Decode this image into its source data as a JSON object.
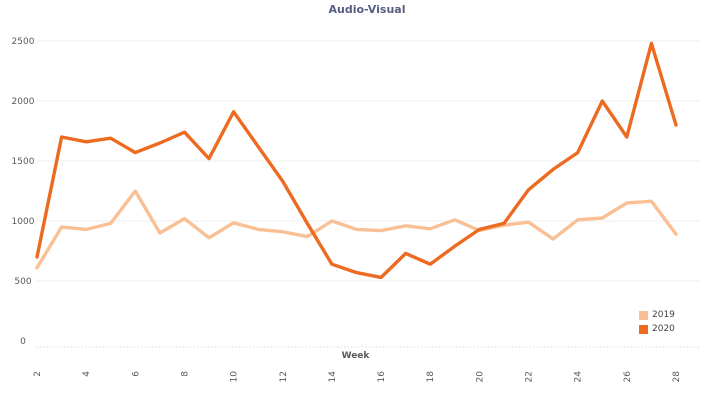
{
  "title": "Audio-Visual",
  "axis": {
    "x_title": "Week"
  },
  "legend": {
    "items": [
      {
        "label": "2019",
        "color": "#F9C096"
      },
      {
        "label": "2020",
        "color": "#ED6B21"
      }
    ]
  },
  "colors": {
    "title": "#565E82",
    "axis_text": "#595959",
    "gridline": "#EFEFEF",
    "axis_line": "#D9D9D9",
    "legend_text": "#404040",
    "background": "#FFFFFF"
  },
  "chart_data": {
    "type": "line",
    "title": "Audio-Visual",
    "xlabel": "Week",
    "ylabel": "",
    "x": [
      2,
      3,
      4,
      5,
      6,
      7,
      8,
      9,
      10,
      11,
      12,
      13,
      14,
      15,
      16,
      17,
      18,
      19,
      20,
      21,
      22,
      23,
      24,
      25,
      26,
      27,
      28
    ],
    "x_ticks_shown": [
      2,
      4,
      6,
      8,
      10,
      12,
      14,
      16,
      18,
      20,
      22,
      24,
      26,
      28
    ],
    "ylim": [
      0,
      2500
    ],
    "y_ticks": [
      0,
      500,
      1000,
      1500,
      2000,
      2500
    ],
    "grid": "horizontal",
    "legend_position": "bottom-right",
    "series": [
      {
        "name": "2019",
        "color": "#F9C096",
        "values": [
          610,
          950,
          930,
          980,
          1250,
          900,
          1020,
          860,
          985,
          930,
          910,
          870,
          1000,
          930,
          920,
          960,
          935,
          1010,
          920,
          965,
          990,
          850,
          1010,
          1025,
          1150,
          1165,
          890
        ]
      },
      {
        "name": "2020",
        "color": "#ED6B21",
        "values": [
          700,
          1700,
          1660,
          1690,
          1570,
          1650,
          1740,
          1520,
          1910,
          1620,
          1330,
          980,
          640,
          570,
          530,
          730,
          640,
          790,
          930,
          980,
          1260,
          1430,
          1570,
          2000,
          1700,
          2480,
          1800
        ]
      }
    ]
  }
}
